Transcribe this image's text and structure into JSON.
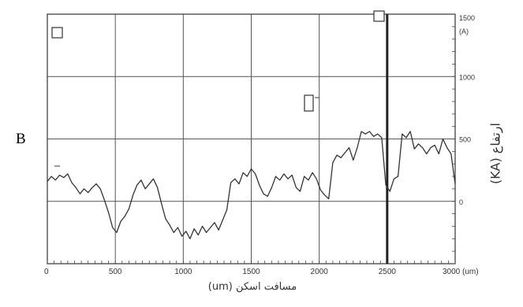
{
  "panel_letter": "B",
  "chart_data": {
    "type": "line",
    "title": "",
    "xlabel": "مسافت اسکن (um)",
    "ylabel": "ارتفاع (KA)",
    "xlim": [
      0,
      3000
    ],
    "ylim": [
      -500,
      1500
    ],
    "x_ticks": [
      "0",
      "500",
      "1000",
      "1500",
      "2000",
      "2500",
      "3000 (um)"
    ],
    "x_tick_values": [
      0,
      500,
      1000,
      1500,
      2000,
      2500,
      3000
    ],
    "y_ticks": [
      "1500",
      "1000",
      "500",
      "0"
    ],
    "y_tick_values": [
      1500,
      1000,
      500,
      0
    ],
    "y_unit": "(A)",
    "grid": true,
    "marker_line_x": 2500,
    "series": [
      {
        "x": [
          0,
          30,
          60,
          90,
          120,
          150,
          180,
          210,
          240,
          270,
          300,
          330,
          360,
          390,
          420,
          450,
          480,
          510,
          540,
          570,
          600,
          630,
          660,
          690,
          720,
          750,
          780,
          810,
          840,
          870,
          900,
          930,
          960,
          990,
          1020,
          1050,
          1080,
          1110,
          1140,
          1170,
          1200,
          1230,
          1260,
          1290,
          1320,
          1350,
          1380,
          1410,
          1440,
          1470,
          1500,
          1530,
          1560,
          1590,
          1620,
          1650,
          1680,
          1710,
          1740,
          1770,
          1800,
          1830,
          1860,
          1890,
          1920,
          1950,
          1980,
          2010,
          2040,
          2070,
          2100,
          2130,
          2160,
          2190,
          2220,
          2250,
          2280,
          2310,
          2340,
          2370,
          2400,
          2430,
          2460,
          2490,
          2520,
          2550,
          2580,
          2610,
          2640,
          2670,
          2700,
          2730,
          2760,
          2790,
          2820,
          2850,
          2880,
          2910,
          2940,
          2970,
          3000
        ],
        "values": [
          160,
          200,
          170,
          210,
          190,
          220,
          150,
          110,
          60,
          100,
          70,
          110,
          140,
          100,
          10,
          -90,
          -210,
          -250,
          -160,
          -120,
          -60,
          50,
          130,
          170,
          100,
          140,
          180,
          110,
          -20,
          -140,
          -190,
          -250,
          -210,
          -280,
          -240,
          -300,
          -220,
          -270,
          -200,
          -250,
          -210,
          -170,
          -230,
          -150,
          -70,
          150,
          180,
          140,
          230,
          200,
          260,
          220,
          130,
          60,
          40,
          110,
          200,
          170,
          220,
          180,
          210,
          110,
          80,
          200,
          170,
          230,
          180,
          90,
          50,
          20,
          310,
          370,
          350,
          390,
          430,
          330,
          430,
          560,
          540,
          560,
          520,
          540,
          510,
          130,
          80,
          180,
          200,
          540,
          510,
          560,
          420,
          460,
          430,
          380,
          430,
          450,
          380,
          500,
          430,
          380,
          140
        ]
      }
    ]
  }
}
